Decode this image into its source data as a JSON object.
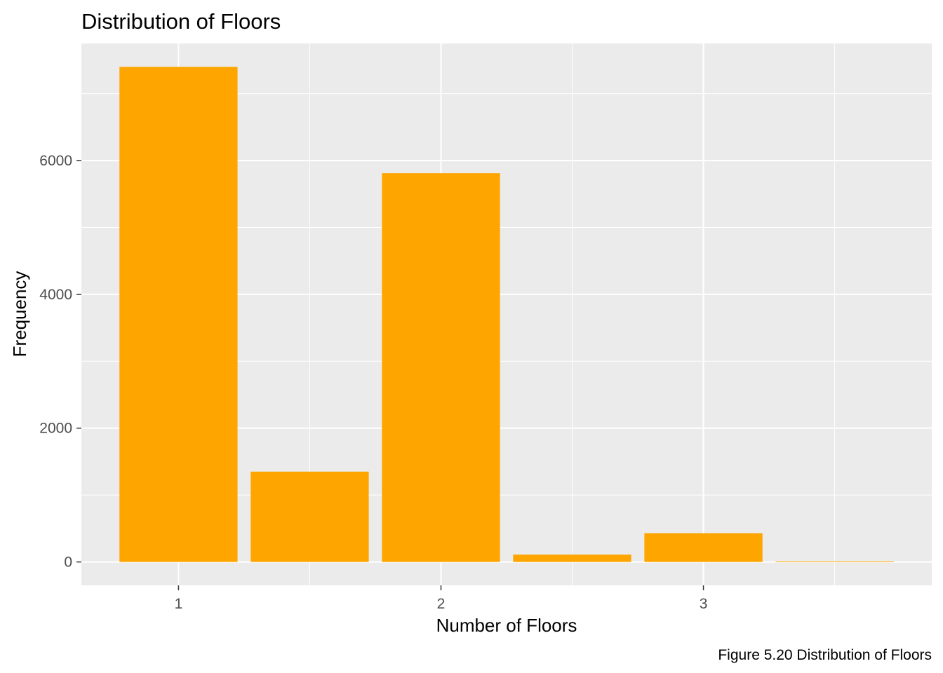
{
  "chart_data": {
    "type": "bar",
    "title": "Distribution of Floors",
    "xlabel": "Number of Floors",
    "ylabel": "Frequency",
    "caption": "Figure 5.20 Distribution of Floors",
    "x": [
      1,
      1.5,
      2,
      2.5,
      3,
      3.5
    ],
    "values": [
      7400,
      1350,
      5810,
      110,
      430,
      8
    ],
    "xlim": [
      0.63,
      3.87
    ],
    "ylim": [
      -350,
      7750
    ],
    "x_ticks": [
      1,
      2,
      3
    ],
    "x_tick_labels": [
      "1",
      "2",
      "3"
    ],
    "y_ticks": [
      0,
      2000,
      4000,
      6000
    ],
    "y_tick_labels": [
      "0",
      "2000",
      "4000",
      "6000"
    ],
    "bar_width": 0.45,
    "grid": true,
    "colors": {
      "bar": "#FFA500",
      "panel": "#EBEBEB",
      "grid": "#FFFFFF",
      "tick_text": "#4D4D4D",
      "tick_mark": "#333333"
    }
  }
}
